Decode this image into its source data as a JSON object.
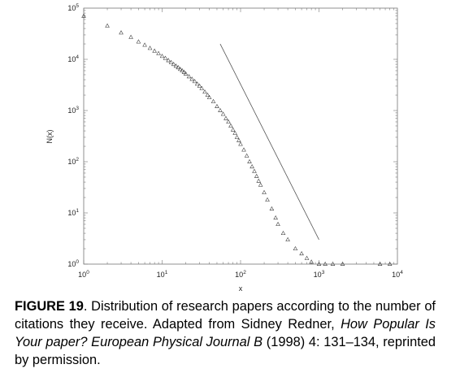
{
  "chart_data": {
    "type": "scatter",
    "marker": "open-triangle",
    "xlabel": "x",
    "ylabel": "N(x)",
    "x_scale": "log",
    "y_scale": "log",
    "xlim": [
      1,
      10000
    ],
    "ylim": [
      1,
      100000
    ],
    "x_ticks": [
      {
        "base": "10",
        "exp": "0"
      },
      {
        "base": "10",
        "exp": "1"
      },
      {
        "base": "10",
        "exp": "2"
      },
      {
        "base": "10",
        "exp": "3"
      },
      {
        "base": "10",
        "exp": "4"
      }
    ],
    "y_ticks": [
      {
        "base": "10",
        "exp": "0"
      },
      {
        "base": "10",
        "exp": "1"
      },
      {
        "base": "10",
        "exp": "2"
      },
      {
        "base": "10",
        "exp": "3"
      },
      {
        "base": "10",
        "exp": "4"
      },
      {
        "base": "10",
        "exp": "5"
      }
    ],
    "grid": false,
    "series": [
      {
        "x": [
          1,
          2,
          3,
          4,
          5,
          6,
          7,
          8,
          9,
          10,
          11,
          12,
          13,
          14,
          15,
          16,
          17,
          18,
          19,
          20,
          22,
          24,
          26,
          28,
          30,
          32,
          35,
          38,
          40,
          45,
          50,
          55,
          60,
          65,
          70,
          75,
          80,
          85,
          90,
          95,
          100,
          110,
          120,
          130,
          140,
          150,
          160,
          170,
          180,
          200,
          220,
          250,
          280,
          300,
          350,
          400,
          500,
          600,
          700,
          800,
          1000,
          1200,
          1500,
          2000,
          6000,
          8000
        ],
        "y": [
          70000,
          45000,
          33000,
          27000,
          22000,
          19000,
          16500,
          14500,
          13000,
          11500,
          10500,
          9500,
          8700,
          8000,
          7400,
          6900,
          6400,
          6000,
          5600,
          5200,
          4600,
          4100,
          3700,
          3300,
          3000,
          2700,
          2300,
          2000,
          1800,
          1500,
          1200,
          1000,
          850,
          700,
          600,
          500,
          420,
          360,
          300,
          260,
          220,
          170,
          130,
          100,
          80,
          65,
          52,
          42,
          35,
          25,
          18,
          12,
          8,
          6,
          4,
          3,
          2,
          1.6,
          1.3,
          1.1,
          1,
          1,
          1,
          1,
          1,
          1
        ]
      },
      {
        "type": "line",
        "x": [
          55,
          1000
        ],
        "y": [
          20000,
          3
        ]
      }
    ]
  },
  "caption": {
    "label": "FIGURE 19",
    "text1": ". Distribution of research papers according to the number of citations they receive. Adapted from Sidney Redner, ",
    "italic": "How Popular Is Your paper? European Physical Journal B",
    "text2": " (1998) 4: 131–134, reprinted by permission."
  }
}
